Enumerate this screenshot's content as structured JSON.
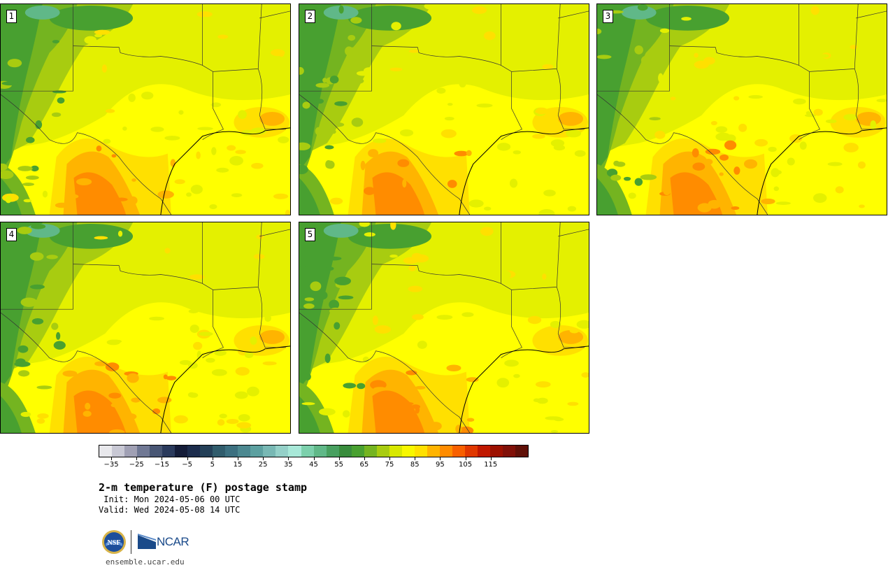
{
  "panels": [
    {
      "label": "1",
      "seed": 11
    },
    {
      "label": "2",
      "seed": 23
    },
    {
      "label": "3",
      "seed": 37
    },
    {
      "label": "4",
      "seed": 41
    },
    {
      "label": "5",
      "seed": 53
    }
  ],
  "colorbar": {
    "colors": [
      "#e8e8ec",
      "#c8c8d4",
      "#a0a0b4",
      "#707894",
      "#485674",
      "#2a3a5c",
      "#141c38",
      "#1c2c4c",
      "#244058",
      "#305c6c",
      "#3c7080",
      "#4c8890",
      "#5ca0a0",
      "#78b8b4",
      "#94d0c8",
      "#a8e8d8",
      "#7cd0ac",
      "#60b888",
      "#48a060",
      "#388c3c",
      "#48a030",
      "#74b420",
      "#a8cc10",
      "#d8e800",
      "#f8f800",
      "#ffe000",
      "#ffb400",
      "#ff8c00",
      "#f86000",
      "#e03800",
      "#c01800",
      "#9c1000",
      "#801008",
      "#601008"
    ],
    "tick_labels": [
      "−35",
      "−25",
      "−15",
      "−5",
      "5",
      "15",
      "25",
      "35",
      "45",
      "55",
      "65",
      "75",
      "85",
      "95",
      "105",
      "115"
    ],
    "min": -40,
    "max": 120
  },
  "title": "2-m temperature (F) postage stamp",
  "init": " Init: Mon 2024-05-06 00 UTC",
  "valid": "Valid: Wed 2024-05-08 14 UTC",
  "logos": {
    "nsf": "NSF",
    "ncar": "NCAR"
  },
  "website": "ensemble.ucar.edu"
}
